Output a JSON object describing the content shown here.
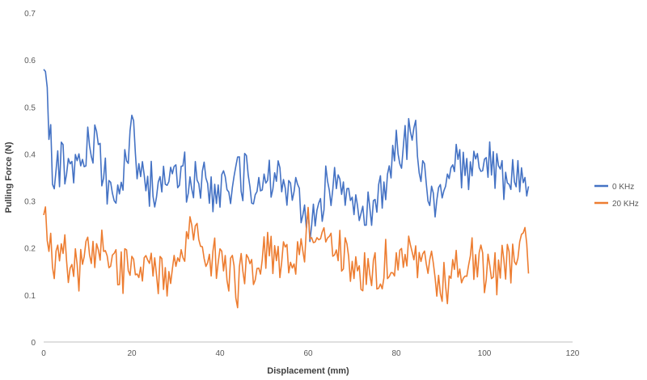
{
  "chart_data": {
    "type": "line",
    "title": "",
    "xlabel": "Displacement (mm)",
    "ylabel": "Pulling Force (N)",
    "xlim": [
      0,
      120
    ],
    "ylim": [
      0,
      0.7
    ],
    "xticks": [
      0,
      20,
      40,
      60,
      80,
      100,
      120
    ],
    "yticks": [
      0,
      0.1,
      0.2,
      0.3,
      0.4,
      0.5,
      0.6,
      0.7
    ],
    "ytick_labels": [
      "0",
      "0.1",
      "0.2",
      "0.3",
      "0.4",
      "0.5",
      "0.6",
      "0.7"
    ],
    "grid": false,
    "legend_position": "right",
    "x_step": 2,
    "series": [
      {
        "name": "0 KHz",
        "color": "#4472C4",
        "x": [
          0,
          2,
          4,
          6,
          8,
          10,
          12,
          14,
          16,
          18,
          20,
          22,
          24,
          26,
          28,
          30,
          32,
          34,
          36,
          38,
          40,
          42,
          44,
          46,
          48,
          50,
          52,
          54,
          56,
          58,
          60,
          62,
          64,
          66,
          68,
          70,
          72,
          74,
          76,
          78,
          80,
          82,
          84,
          86,
          88,
          90,
          92,
          94,
          96,
          98,
          100,
          102,
          104,
          106,
          108,
          110
        ],
        "values": [
          0.58,
          0.37,
          0.38,
          0.36,
          0.39,
          0.41,
          0.42,
          0.34,
          0.32,
          0.35,
          0.44,
          0.37,
          0.34,
          0.33,
          0.36,
          0.38,
          0.35,
          0.34,
          0.36,
          0.32,
          0.34,
          0.33,
          0.34,
          0.35,
          0.33,
          0.32,
          0.34,
          0.33,
          0.32,
          0.3,
          0.26,
          0.27,
          0.32,
          0.35,
          0.34,
          0.3,
          0.28,
          0.29,
          0.31,
          0.34,
          0.4,
          0.42,
          0.44,
          0.38,
          0.32,
          0.3,
          0.36,
          0.39,
          0.34,
          0.36,
          0.37,
          0.38,
          0.36,
          0.33,
          0.35,
          0.35
        ]
      },
      {
        "name": "20 KHz",
        "color": "#ED7D31",
        "x": [
          0,
          2,
          4,
          6,
          8,
          10,
          12,
          14,
          16,
          18,
          20,
          22,
          24,
          26,
          28,
          30,
          32,
          34,
          36,
          38,
          40,
          42,
          44,
          46,
          48,
          50,
          52,
          54,
          56,
          58,
          60,
          62,
          64,
          66,
          68,
          70,
          72,
          74,
          76,
          78,
          80,
          82,
          84,
          86,
          88,
          90,
          92,
          94,
          96,
          98,
          100,
          102,
          104,
          106,
          108,
          110
        ],
        "values": [
          0.27,
          0.18,
          0.19,
          0.17,
          0.15,
          0.18,
          0.2,
          0.21,
          0.16,
          0.15,
          0.17,
          0.16,
          0.18,
          0.15,
          0.14,
          0.17,
          0.2,
          0.23,
          0.22,
          0.18,
          0.16,
          0.15,
          0.12,
          0.18,
          0.17,
          0.18,
          0.19,
          0.17,
          0.16,
          0.19,
          0.24,
          0.25,
          0.23,
          0.21,
          0.19,
          0.17,
          0.15,
          0.16,
          0.15,
          0.18,
          0.19,
          0.2,
          0.17,
          0.16,
          0.15,
          0.14,
          0.12,
          0.17,
          0.16,
          0.18,
          0.15,
          0.14,
          0.16,
          0.17,
          0.2,
          0.19
        ]
      }
    ]
  }
}
